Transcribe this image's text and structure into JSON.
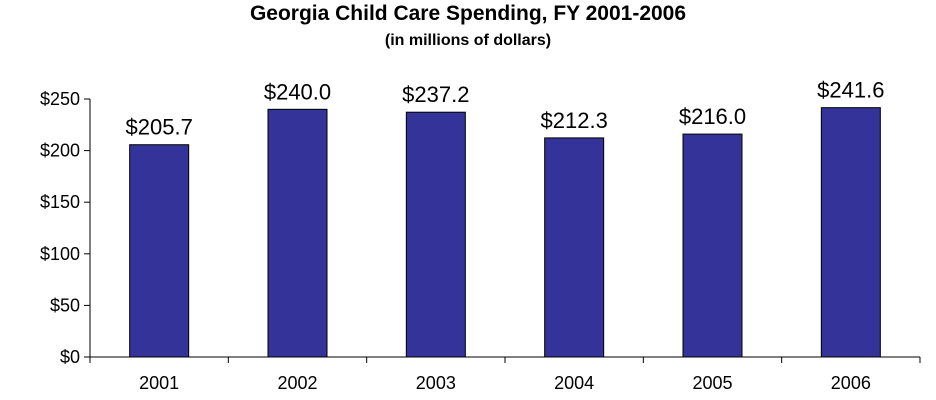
{
  "chart_data": {
    "type": "bar",
    "title": "Georgia Child Care Spending, FY 2001-2006",
    "subtitle": "(in millions of dollars)",
    "xlabel": "",
    "ylabel": "",
    "categories": [
      "2001",
      "2002",
      "2003",
      "2004",
      "2005",
      "2006"
    ],
    "values": [
      205.7,
      240.0,
      237.2,
      212.3,
      216.0,
      241.6
    ],
    "data_labels": [
      "$205.7",
      "$240.0",
      "$237.2",
      "$212.3",
      "$216.0",
      "$241.6"
    ],
    "y_ticks": [
      0,
      50,
      100,
      150,
      200,
      250
    ],
    "y_tick_labels": [
      "$0",
      "$50",
      "$100",
      "$150",
      "$200",
      "$250"
    ],
    "ylim": [
      0,
      250
    ],
    "grid": false,
    "legend": "none",
    "bar_color": "#333399"
  }
}
